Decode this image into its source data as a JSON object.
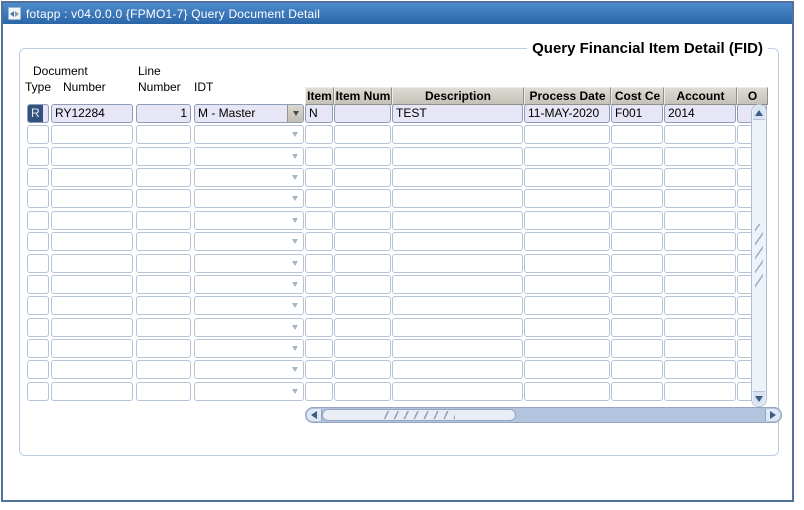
{
  "window": {
    "title": "fotapp : v04.0.0.0  {FPMO1-7} Query Document Detail"
  },
  "panel": {
    "title": "Query Financial Item Detail (FID)"
  },
  "document_block": {
    "labels": {
      "group": "Document",
      "type": "Type",
      "number": "Number",
      "line_top": "Line",
      "line_bottom": "Number",
      "idt": "IDT"
    },
    "rows": [
      {
        "type": "R",
        "number": "RY12284",
        "line_number": "1",
        "idt": "M - Master"
      },
      {
        "type": "",
        "number": "",
        "line_number": "",
        "idt": ""
      },
      {
        "type": "",
        "number": "",
        "line_number": "",
        "idt": ""
      },
      {
        "type": "",
        "number": "",
        "line_number": "",
        "idt": ""
      },
      {
        "type": "",
        "number": "",
        "line_number": "",
        "idt": ""
      },
      {
        "type": "",
        "number": "",
        "line_number": "",
        "idt": ""
      },
      {
        "type": "",
        "number": "",
        "line_number": "",
        "idt": ""
      },
      {
        "type": "",
        "number": "",
        "line_number": "",
        "idt": ""
      },
      {
        "type": "",
        "number": "",
        "line_number": "",
        "idt": ""
      },
      {
        "type": "",
        "number": "",
        "line_number": "",
        "idt": ""
      },
      {
        "type": "",
        "number": "",
        "line_number": "",
        "idt": ""
      },
      {
        "type": "",
        "number": "",
        "line_number": "",
        "idt": ""
      },
      {
        "type": "",
        "number": "",
        "line_number": "",
        "idt": ""
      },
      {
        "type": "",
        "number": "",
        "line_number": "",
        "idt": ""
      }
    ]
  },
  "item_table": {
    "headers": [
      "Item",
      "Item Num",
      "Description",
      "Process Date",
      "Cost Ce",
      "Account",
      "O"
    ],
    "rows": [
      [
        "N",
        "",
        "TEST",
        "11-MAY-2020",
        "F001",
        "2014",
        ""
      ],
      [
        "",
        "",
        "",
        "",
        "",
        "",
        ""
      ],
      [
        "",
        "",
        "",
        "",
        "",
        "",
        ""
      ],
      [
        "",
        "",
        "",
        "",
        "",
        "",
        ""
      ],
      [
        "",
        "",
        "",
        "",
        "",
        "",
        ""
      ],
      [
        "",
        "",
        "",
        "",
        "",
        "",
        ""
      ],
      [
        "",
        "",
        "",
        "",
        "",
        "",
        ""
      ],
      [
        "",
        "",
        "",
        "",
        "",
        "",
        ""
      ],
      [
        "",
        "",
        "",
        "",
        "",
        "",
        ""
      ],
      [
        "",
        "",
        "",
        "",
        "",
        "",
        ""
      ],
      [
        "",
        "",
        "",
        "",
        "",
        "",
        ""
      ],
      [
        "",
        "",
        "",
        "",
        "",
        "",
        ""
      ],
      [
        "",
        "",
        "",
        "",
        "",
        "",
        ""
      ],
      [
        "",
        "",
        "",
        "",
        "",
        "",
        ""
      ]
    ]
  },
  "colors": {
    "titlebar_top": "#4e8ccd",
    "titlebar_bottom": "#2a65a8",
    "window_border": "#51719c",
    "frame_border": "#bccde1",
    "row_fill": "#e6e6f6",
    "selection": "#31517e",
    "header_top": "#dedbd4",
    "header_bottom": "#c5c1b9",
    "scrollbar_track": "#b3c4de"
  }
}
